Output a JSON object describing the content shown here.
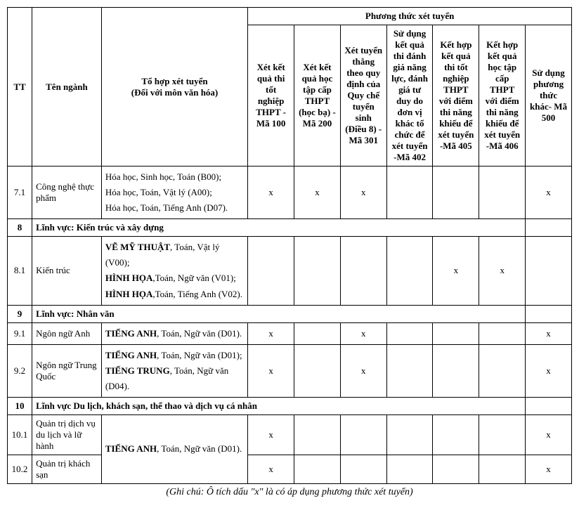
{
  "headers": {
    "tt": "TT",
    "ten_nganh": "Tên ngành",
    "to_hop": "Tổ hợp xét tuyển\n(Đối với môn văn hóa)",
    "phuong_thuc": "Phương thức xét tuyển",
    "m100": "Xét kết quả thi tốt nghiệp THPT - Mã 100",
    "m200": "Xét kết quả học tập cấp THPT (học bạ) -Mã 200",
    "m301": "Xét tuyển thẳng theo quy định của Quy chế tuyển sinh (Điều 8) -Mã 301",
    "m402": "Sử dụng kết quả thi đánh giá năng lực, đánh giá tư duy do đơn vị khác tổ chức để xét tuyển -Mã 402",
    "m405": "Kết hợp kết quả thi tốt nghiệp THPT với điểm thi năng khiếu để xét tuyển -Mã 405",
    "m406": "Kết hợp kết quả học tập cấp THPT với điểm thi năng khiếu để xét tuyển -Mã 406",
    "m500": "Sử dụng phương thức khác- Mã 500"
  },
  "rows": [
    {
      "tt": "7.1",
      "name": "Công nghệ thực phẩm",
      "combo_html": "Hóa học, Sinh học, Toán (B00);<br>Hóa học, Toán, Vật lý (A00);<br>Hóa học, Toán, Tiếng Anh (D07).",
      "m100": "x",
      "m200": "x",
      "m301": "x",
      "m402": "",
      "m405": "",
      "m406": "",
      "m500": "x"
    },
    {
      "section": true,
      "tt": "8",
      "title": "Lĩnh vực: Kiến trúc và xây dựng"
    },
    {
      "tt": "8.1",
      "name": "Kiến trúc",
      "combo_html": "<span class='combo-strong'>VẼ MỸ THUẬT</span>, Toán, Vật lý (V00);<br><span class='combo-strong'>HÌNH HỌA</span>,Toán, Ngữ văn (V01);<br><span class='combo-strong'>HÌNH HỌA</span>,Toán, Tiếng Anh (V02).",
      "m100": "",
      "m200": "",
      "m301": "",
      "m402": "",
      "m405": "x",
      "m406": "x",
      "m500": ""
    },
    {
      "section": true,
      "tt": "9",
      "title": "Lĩnh vực: Nhân văn"
    },
    {
      "tt": "9.1",
      "name": "Ngôn ngữ Anh",
      "combo_html": "<span class='combo-strong'>TIẾNG ANH</span>, Toán, Ngữ văn (D01).",
      "m100": "x",
      "m200": "",
      "m301": "x",
      "m402": "",
      "m405": "",
      "m406": "",
      "m500": "x"
    },
    {
      "tt": "9.2",
      "name": "Ngôn ngữ Trung Quốc",
      "combo_html": "<span class='combo-strong'>TIẾNG ANH</span>, Toán, Ngữ văn (D01);<br><span class='combo-strong'>TIẾNG TRUNG</span>, Toán, Ngữ văn (D04).",
      "m100": "x",
      "m200": "",
      "m301": "x",
      "m402": "",
      "m405": "",
      "m406": "",
      "m500": "x"
    },
    {
      "section": true,
      "tt": "10",
      "title": "Lĩnh vực Du lịch, khách sạn, thể thao và dịch vụ cá nhân"
    },
    {
      "tt": "10.1",
      "name": "Quản trị dịch vụ du lịch và lữ hành",
      "combo_shared_html": "<span class='combo-strong'>TIẾNG ANH</span>, Toán, Ngữ văn (D01).",
      "combo_rowspan": 2,
      "m100": "x",
      "m200": "",
      "m301": "",
      "m402": "",
      "m405": "",
      "m406": "",
      "m500": "x"
    },
    {
      "tt": "10.2",
      "name": "Quản trị khách sạn",
      "combo_skip": true,
      "m100": "x",
      "m200": "",
      "m301": "",
      "m402": "",
      "m405": "",
      "m406": "",
      "m500": "x"
    }
  ],
  "footnote": "(Ghi chú: Ô tích dấu \"x\" là có áp dụng phương thức xét tuyển)"
}
